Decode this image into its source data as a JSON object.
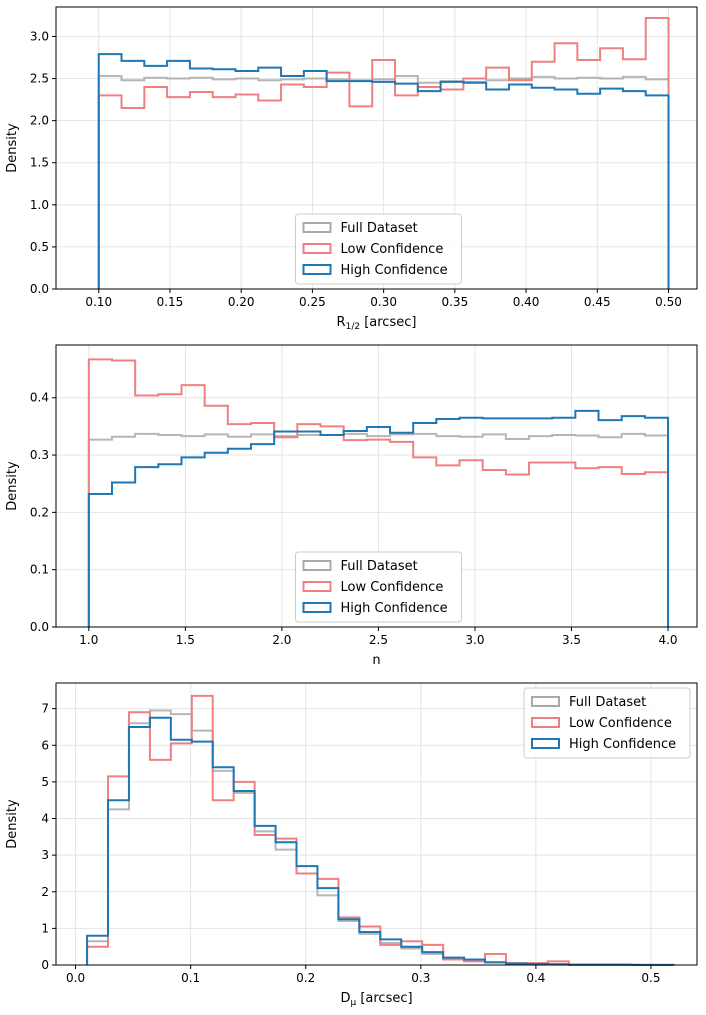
{
  "colors": {
    "full": "#a9a9a9",
    "low": "#f08080",
    "high": "#1f77b4"
  },
  "chart_data": [
    {
      "type": "histogram",
      "title": "",
      "xlabel": "R",
      "xlabel_sub": "1/2",
      "xlabel_suffix": " [arcsec]",
      "ylabel": "Density",
      "xlim": [
        0.07,
        0.52
      ],
      "ylim": [
        0,
        3.35
      ],
      "xticks": [
        0.1,
        0.15,
        0.2,
        0.25,
        0.3,
        0.35,
        0.4,
        0.45,
        0.5
      ],
      "xtick_labels": [
        "0.10",
        "0.15",
        "0.20",
        "0.25",
        "0.30",
        "0.35",
        "0.40",
        "0.45",
        "0.50"
      ],
      "yticks": [
        0,
        0.5,
        1.0,
        1.5,
        2.0,
        2.5,
        3.0
      ],
      "ytick_labels": [
        "0.0",
        "0.5",
        "1.0",
        "1.5",
        "2.0",
        "2.5",
        "3.0"
      ],
      "grid": true,
      "legend_position": "lower-center",
      "bins": [
        0.1,
        0.116,
        0.132,
        0.148,
        0.164,
        0.18,
        0.196,
        0.212,
        0.228,
        0.244,
        0.26,
        0.276,
        0.292,
        0.308,
        0.324,
        0.34,
        0.356,
        0.372,
        0.388,
        0.404,
        0.42,
        0.436,
        0.452,
        0.468,
        0.484,
        0.5
      ],
      "series": [
        {
          "name": "Full Dataset",
          "color_key": "full",
          "values": [
            2.53,
            2.48,
            2.51,
            2.5,
            2.51,
            2.49,
            2.5,
            2.48,
            2.49,
            2.5,
            2.49,
            2.48,
            2.49,
            2.53,
            2.45,
            2.47,
            2.46,
            2.48,
            2.5,
            2.52,
            2.5,
            2.51,
            2.5,
            2.52,
            2.49
          ]
        },
        {
          "name": "Low Confidence",
          "color_key": "low",
          "values": [
            2.3,
            2.15,
            2.4,
            2.28,
            2.34,
            2.28,
            2.31,
            2.24,
            2.43,
            2.4,
            2.57,
            2.17,
            2.72,
            2.3,
            2.4,
            2.37,
            2.5,
            2.63,
            2.48,
            2.7,
            2.92,
            2.72,
            2.86,
            2.73,
            3.22
          ]
        },
        {
          "name": "High Confidence",
          "color_key": "high",
          "values": [
            2.79,
            2.71,
            2.65,
            2.71,
            2.62,
            2.61,
            2.59,
            2.63,
            2.53,
            2.59,
            2.47,
            2.47,
            2.46,
            2.44,
            2.35,
            2.46,
            2.45,
            2.37,
            2.43,
            2.39,
            2.37,
            2.32,
            2.38,
            2.35,
            2.3
          ]
        }
      ]
    },
    {
      "type": "histogram",
      "title": "",
      "xlabel": "n",
      "xlabel_sub": "",
      "xlabel_suffix": "",
      "ylabel": "Density",
      "xlim": [
        0.83,
        4.15
      ],
      "ylim": [
        0,
        0.492
      ],
      "xticks": [
        1.0,
        1.5,
        2.0,
        2.5,
        3.0,
        3.5,
        4.0
      ],
      "xtick_labels": [
        "1.0",
        "1.5",
        "2.0",
        "2.5",
        "3.0",
        "3.5",
        "4.0"
      ],
      "yticks": [
        0,
        0.1,
        0.2,
        0.3,
        0.4
      ],
      "ytick_labels": [
        "0.0",
        "0.1",
        "0.2",
        "0.3",
        "0.4"
      ],
      "grid": true,
      "legend_position": "lower-center",
      "bins": [
        1.0,
        1.12,
        1.24,
        1.36,
        1.48,
        1.6,
        1.72,
        1.84,
        1.96,
        2.08,
        2.2,
        2.32,
        2.44,
        2.56,
        2.68,
        2.8,
        2.92,
        3.04,
        3.16,
        3.28,
        3.4,
        3.52,
        3.64,
        3.76,
        3.88,
        4.0
      ],
      "series": [
        {
          "name": "Full Dataset",
          "color_key": "full",
          "values": [
            0.327,
            0.332,
            0.337,
            0.335,
            0.333,
            0.336,
            0.332,
            0.336,
            0.333,
            0.335,
            0.335,
            0.337,
            0.333,
            0.336,
            0.337,
            0.333,
            0.332,
            0.336,
            0.328,
            0.333,
            0.335,
            0.334,
            0.331,
            0.337,
            0.334
          ]
        },
        {
          "name": "Low Confidence",
          "color_key": "low",
          "values": [
            0.467,
            0.465,
            0.404,
            0.406,
            0.422,
            0.386,
            0.354,
            0.356,
            0.331,
            0.354,
            0.35,
            0.326,
            0.327,
            0.323,
            0.296,
            0.282,
            0.291,
            0.274,
            0.266,
            0.287,
            0.287,
            0.277,
            0.279,
            0.267,
            0.27
          ]
        },
        {
          "name": "High Confidence",
          "color_key": "high",
          "values": [
            0.232,
            0.252,
            0.279,
            0.284,
            0.296,
            0.304,
            0.311,
            0.319,
            0.341,
            0.341,
            0.335,
            0.342,
            0.349,
            0.339,
            0.356,
            0.363,
            0.365,
            0.364,
            0.364,
            0.364,
            0.365,
            0.377,
            0.361,
            0.368,
            0.365
          ]
        }
      ]
    },
    {
      "type": "histogram",
      "title": "",
      "xlabel": "D",
      "xlabel_sub": "μ",
      "xlabel_suffix": " [arcsec]",
      "ylabel": "Density",
      "xlim": [
        -0.017,
        0.54
      ],
      "ylim": [
        0,
        7.7
      ],
      "xticks": [
        0.0,
        0.1,
        0.2,
        0.3,
        0.4,
        0.5
      ],
      "xtick_labels": [
        "0.0",
        "0.1",
        "0.2",
        "0.3",
        "0.4",
        "0.5"
      ],
      "yticks": [
        0,
        1,
        2,
        3,
        4,
        5,
        6,
        7
      ],
      "ytick_labels": [
        "0",
        "1",
        "2",
        "3",
        "4",
        "5",
        "6",
        "7"
      ],
      "grid": true,
      "legend_position": "upper-right",
      "bins": [
        0.01,
        0.0282,
        0.0464,
        0.0646,
        0.0828,
        0.101,
        0.1192,
        0.1374,
        0.1556,
        0.1738,
        0.192,
        0.2102,
        0.2284,
        0.2466,
        0.2648,
        0.283,
        0.3012,
        0.3194,
        0.3376,
        0.3558,
        0.374,
        0.3922,
        0.4104,
        0.4286,
        0.4468,
        0.465,
        0.4832,
        0.5014,
        0.5196
      ],
      "series": [
        {
          "name": "Full Dataset",
          "color_key": "full",
          "values": [
            0.65,
            4.25,
            6.6,
            6.95,
            6.85,
            6.4,
            5.3,
            4.7,
            3.65,
            3.15,
            2.5,
            1.9,
            1.2,
            0.85,
            0.6,
            0.45,
            0.3,
            0.2,
            0.13,
            0.08,
            0.05,
            0.03,
            0.02,
            0.01,
            0.01,
            0.01,
            0.005,
            0.003
          ]
        },
        {
          "name": "Low Confidence",
          "color_key": "low",
          "values": [
            0.5,
            5.15,
            6.9,
            5.6,
            6.05,
            7.35,
            4.5,
            5.0,
            3.55,
            3.45,
            2.5,
            2.35,
            1.3,
            1.05,
            0.55,
            0.65,
            0.55,
            0.15,
            0.1,
            0.3,
            0.05,
            0.05,
            0.1,
            0.0,
            0.0,
            0.0,
            0.0,
            0.0
          ]
        },
        {
          "name": "High Confidence",
          "color_key": "high",
          "values": [
            0.8,
            4.5,
            6.5,
            6.75,
            6.15,
            6.1,
            5.4,
            4.75,
            3.8,
            3.35,
            2.7,
            2.1,
            1.25,
            0.9,
            0.7,
            0.5,
            0.35,
            0.2,
            0.15,
            0.07,
            0.04,
            0.03,
            0.02,
            0.01,
            0.01,
            0.01,
            0.005,
            0.003
          ]
        }
      ]
    }
  ]
}
